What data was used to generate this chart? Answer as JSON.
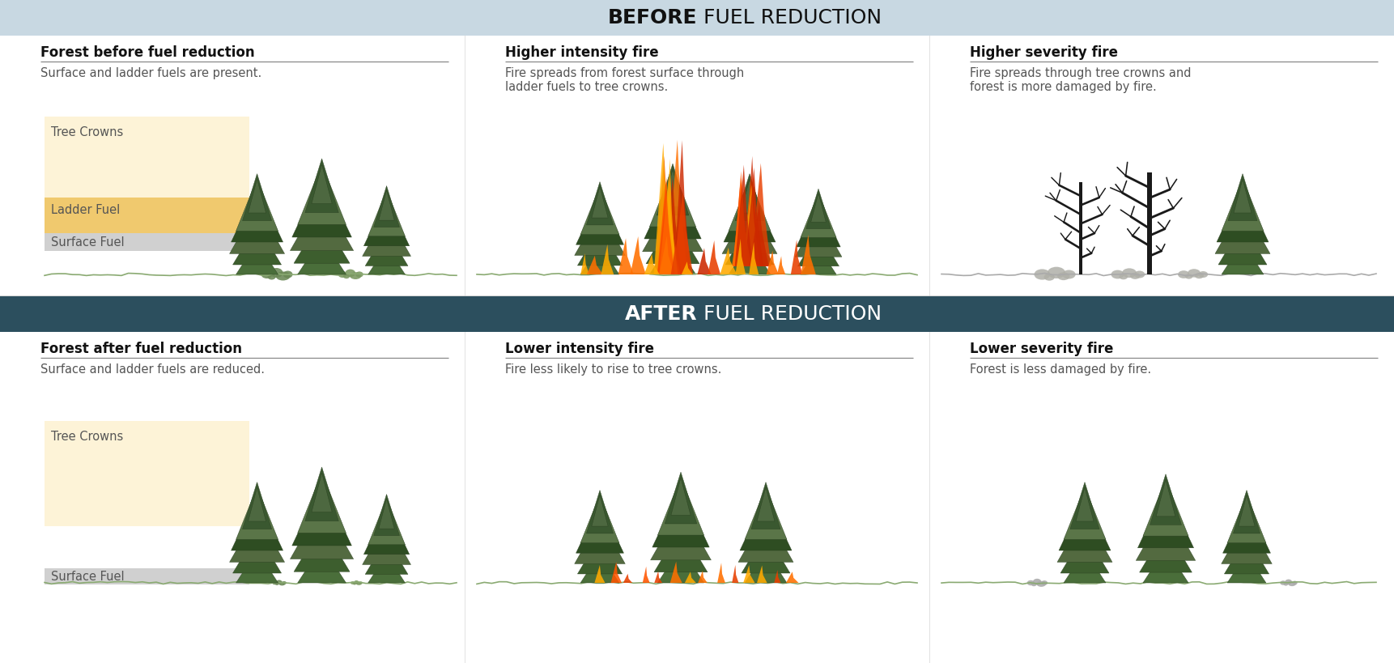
{
  "title_before_bold": "BEFORE",
  "title_before_rest": " FUEL REDUCTION",
  "title_after_bold": "AFTER",
  "title_after_rest": " FUEL REDUCTION",
  "before_header_bg": "#c8d8e2",
  "after_header_bg": "#2c4f5e",
  "after_header_text_color": "#ffffff",
  "before_header_text_color": "#111111",
  "bg_color": "#ffffff",
  "col1_title_before": "Forest before fuel reduction",
  "col1_sub_before": "Surface and ladder fuels are present.",
  "col2_title_before": "Higher intensity fire",
  "col2_sub_before": "Fire spreads from forest surface through\nladder fuels to tree crowns.",
  "col3_title_before": "Higher severity fire",
  "col3_sub_before": "Fire spreads through tree crowns and\nforest is more damaged by fire.",
  "col1_title_after": "Forest after fuel reduction",
  "col1_sub_after": "Surface and ladder fuels are reduced.",
  "col2_title_after": "Lower intensity fire",
  "col2_sub_after": "Fire less likely to rise to tree crowns.",
  "col3_title_after": "Lower severity fire",
  "col3_sub_after": "Forest is less damaged by fire.",
  "tree_crown_bg": "#fdf3d7",
  "ladder_fuel_bg": "#f0c96e",
  "surface_fuel_bg": "#d0d0d0",
  "label_tree_crowns": "Tree Crowns",
  "label_ladder_fuel": "Ladder Fuel",
  "label_surface_fuel": "Surface Fuel",
  "divider_color": "#cccccc",
  "separator_color": "#dddddd"
}
